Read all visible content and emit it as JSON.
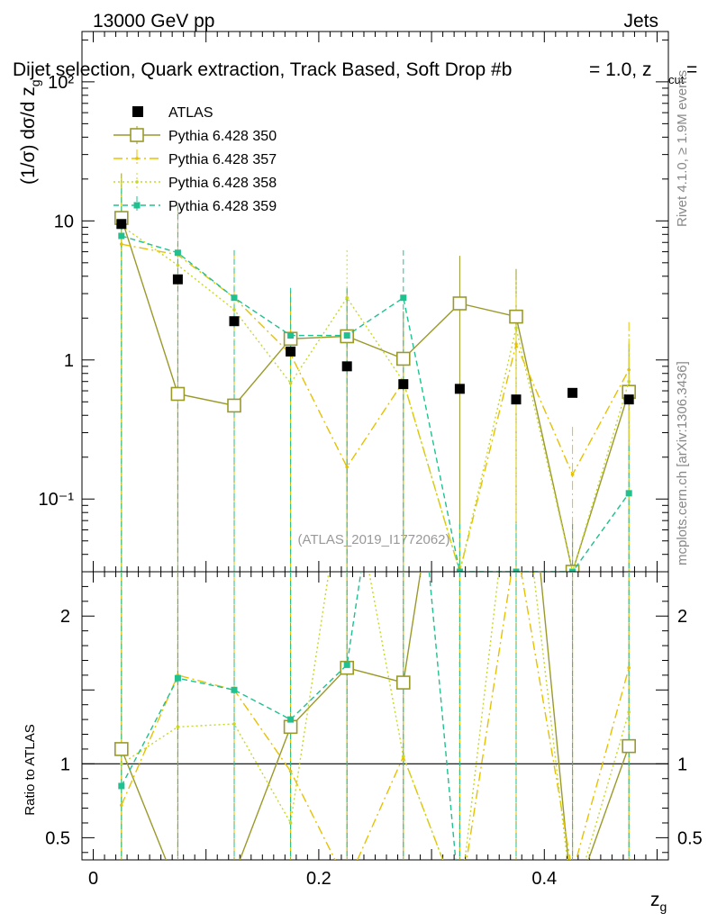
{
  "header": {
    "energy": "13000 GeV pp",
    "category": "Jets",
    "title": "Dijet selection, Quark extraction, Track Based, Soft Drop #b",
    "title_tail": "= 1.0, z",
    "title_tail_sub": "cut",
    "title_tail_end": " ="
  },
  "side": {
    "rivet": "Rivet 4.1.0, ≥ 1.9M events",
    "mcplots": "mcplots.cern.ch [arXiv:1306.3436]"
  },
  "watermark": "(ATLAS_2019_I1772062)",
  "colors": {
    "atlas": "#000000",
    "p350": "#9a9a2a",
    "p357": "#e6c200",
    "p358": "#c8d820",
    "p359": "#20c090"
  },
  "chart_data": {
    "type": "scatter",
    "title": "Dijet selection, Quark extraction, Track Based, Soft Drop #b = 1.0, z_cut =",
    "xlabel": "z_g",
    "ylabel": "(1/σ) dσ/d z_g",
    "ratio_ylabel": "Ratio to ATLAS",
    "x": [
      0.025,
      0.075,
      0.125,
      0.175,
      0.225,
      0.275,
      0.325,
      0.375,
      0.425,
      0.475
    ],
    "xlim": [
      -0.01,
      0.51
    ],
    "ylim_main": [
      0.03,
      230
    ],
    "ylim_ratio": [
      0.35,
      2.3
    ],
    "x_ticks": [
      "0",
      "0.2",
      "0.4"
    ],
    "y_ticks_main": [
      "10⁻¹",
      "1",
      "10",
      "10²"
    ],
    "y_ticks_ratio": [
      "0.5",
      "1",
      "2"
    ],
    "legend_position": "top-left",
    "series": [
      {
        "name": "ATLAS",
        "key": "atlas",
        "values": [
          9.5,
          3.8,
          1.9,
          1.15,
          0.9,
          0.67,
          0.62,
          0.52,
          0.58,
          0.52
        ]
      },
      {
        "name": "Pythia 6.428 350",
        "key": "p350",
        "values": [
          10.5,
          0.57,
          0.47,
          1.42,
          1.48,
          1.02,
          2.55,
          2.05,
          0.03,
          0.59
        ],
        "ratio": [
          1.1,
          0.15,
          0.25,
          1.25,
          1.65,
          1.55,
          4.0,
          4.0,
          0.05,
          1.12
        ]
      },
      {
        "name": "Pythia 6.428 357",
        "key": "p357",
        "values": [
          6.8,
          5.7,
          2.8,
          1.1,
          0.17,
          0.7,
          0.03,
          1.3,
          0.15,
          0.85
        ],
        "ratio": [
          0.72,
          1.6,
          1.5,
          0.95,
          0.19,
          1.05,
          0.05,
          2.5,
          0.26,
          1.65
        ]
      },
      {
        "name": "Pythia 6.428 358",
        "key": "p358",
        "values": [
          9.2,
          4.8,
          2.3,
          0.68,
          2.8,
          0.7,
          0.03,
          1.7,
          0.03,
          0.7
        ],
        "ratio": [
          1.0,
          1.25,
          1.27,
          0.6,
          3.1,
          1.05,
          0.05,
          3.3,
          0.05,
          1.35
        ]
      },
      {
        "name": "Pythia 6.428 359",
        "key": "p359",
        "values": [
          7.8,
          5.9,
          2.8,
          1.5,
          1.5,
          2.8,
          0.03,
          0.03,
          0.03,
          0.11
        ],
        "ratio": [
          0.85,
          1.58,
          1.5,
          1.3,
          1.67,
          4.2,
          0.05,
          0.05,
          0.05,
          0.21
        ]
      }
    ]
  }
}
